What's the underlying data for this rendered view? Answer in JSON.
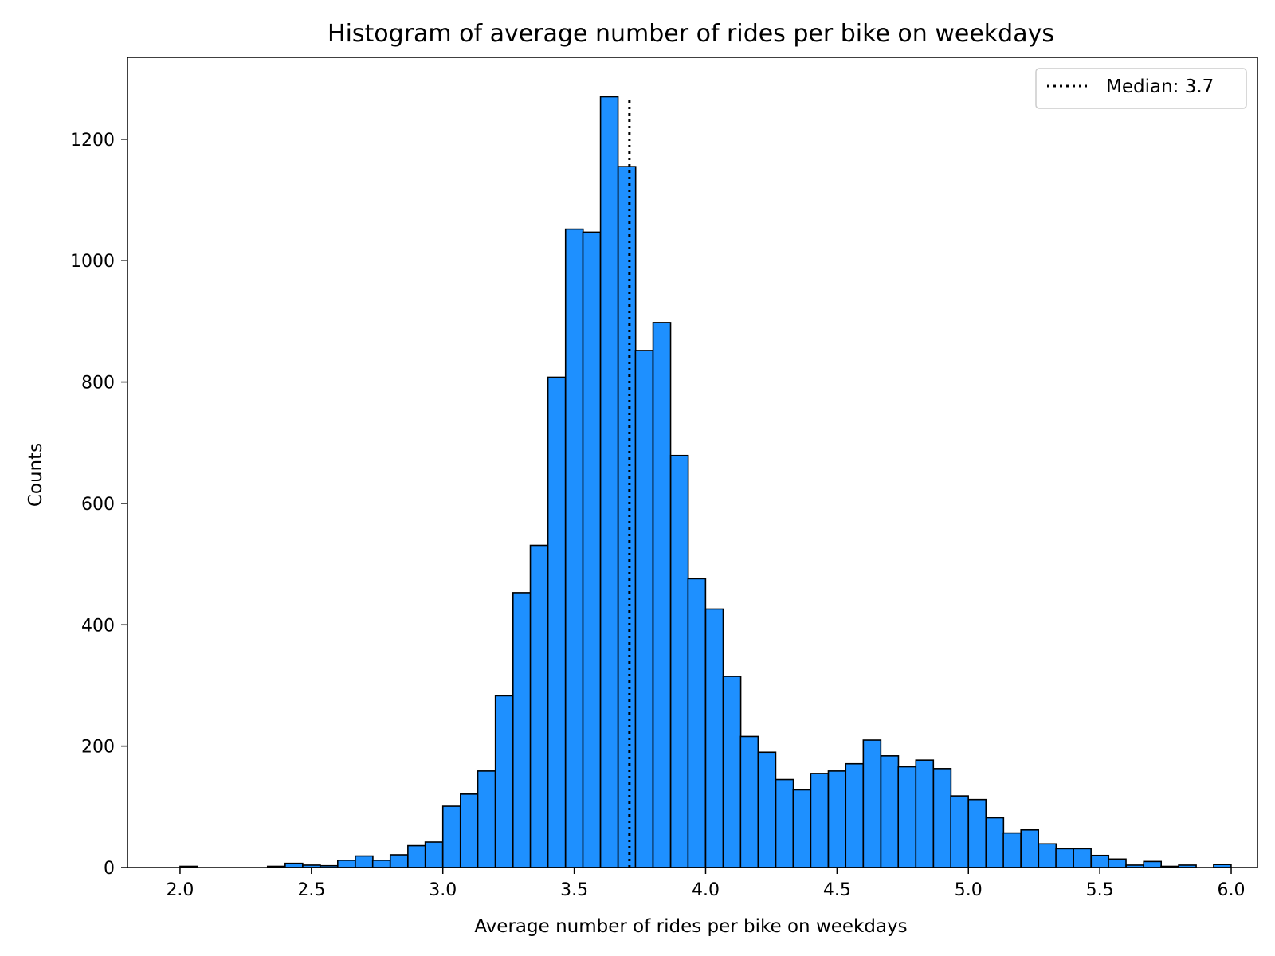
{
  "chart_data": {
    "type": "bar",
    "title": "Histogram of average number of rides per bike on weekdays",
    "xlabel": "Average number of rides per bike on weekdays",
    "ylabel": "Counts",
    "xlim": [
      1.8,
      6.1
    ],
    "ylim": [
      0,
      1335
    ],
    "bin_width": 0.0667,
    "bins_start": [
      2.0,
      2.333,
      2.4,
      2.467,
      2.533,
      2.6,
      2.667,
      2.733,
      2.8,
      2.867,
      2.933,
      3.0,
      3.067,
      3.133,
      3.2,
      3.267,
      3.333,
      3.4,
      3.467,
      3.533,
      3.6,
      3.667,
      3.733,
      3.8,
      3.867,
      3.933,
      4.0,
      4.067,
      4.133,
      4.2,
      4.267,
      4.333,
      4.4,
      4.467,
      4.533,
      4.6,
      4.667,
      4.733,
      4.8,
      4.867,
      4.933,
      5.0,
      5.067,
      5.133,
      5.2,
      5.267,
      5.333,
      5.4,
      5.467,
      5.533,
      5.6,
      5.667,
      5.733,
      5.8,
      5.933
    ],
    "values": [
      2,
      2,
      7,
      4,
      3,
      12,
      19,
      12,
      21,
      36,
      42,
      101,
      121,
      159,
      283,
      453,
      531,
      808,
      1052,
      1047,
      1270,
      1155,
      852,
      898,
      679,
      476,
      426,
      315,
      216,
      190,
      145,
      128,
      155,
      159,
      171,
      210,
      184,
      166,
      177,
      163,
      118,
      112,
      82,
      57,
      62,
      39,
      31,
      31,
      20,
      14,
      4,
      10,
      2,
      4,
      5
    ],
    "bar_color": "#1e90ff",
    "edge_color": "#000000",
    "x_ticks": [
      {
        "value": 2.0,
        "label": "2.0"
      },
      {
        "value": 2.5,
        "label": "2.5"
      },
      {
        "value": 3.0,
        "label": "3.0"
      },
      {
        "value": 3.5,
        "label": "3.5"
      },
      {
        "value": 4.0,
        "label": "4.0"
      },
      {
        "value": 4.5,
        "label": "4.5"
      },
      {
        "value": 5.0,
        "label": "5.0"
      },
      {
        "value": 5.5,
        "label": "5.5"
      },
      {
        "value": 6.0,
        "label": "6.0"
      }
    ],
    "y_ticks": [
      {
        "value": 0,
        "label": "0"
      },
      {
        "value": 200,
        "label": "200"
      },
      {
        "value": 400,
        "label": "400"
      },
      {
        "value": 600,
        "label": "600"
      },
      {
        "value": 800,
        "label": "800"
      },
      {
        "value": 1000,
        "label": "1000"
      },
      {
        "value": 1200,
        "label": "1200"
      }
    ],
    "median": {
      "value": 3.71,
      "line_top": 1270,
      "label": "Median: 3.7",
      "line_style": "dotted",
      "color": "#000000"
    },
    "grid": false,
    "legend_position": "top-right"
  }
}
